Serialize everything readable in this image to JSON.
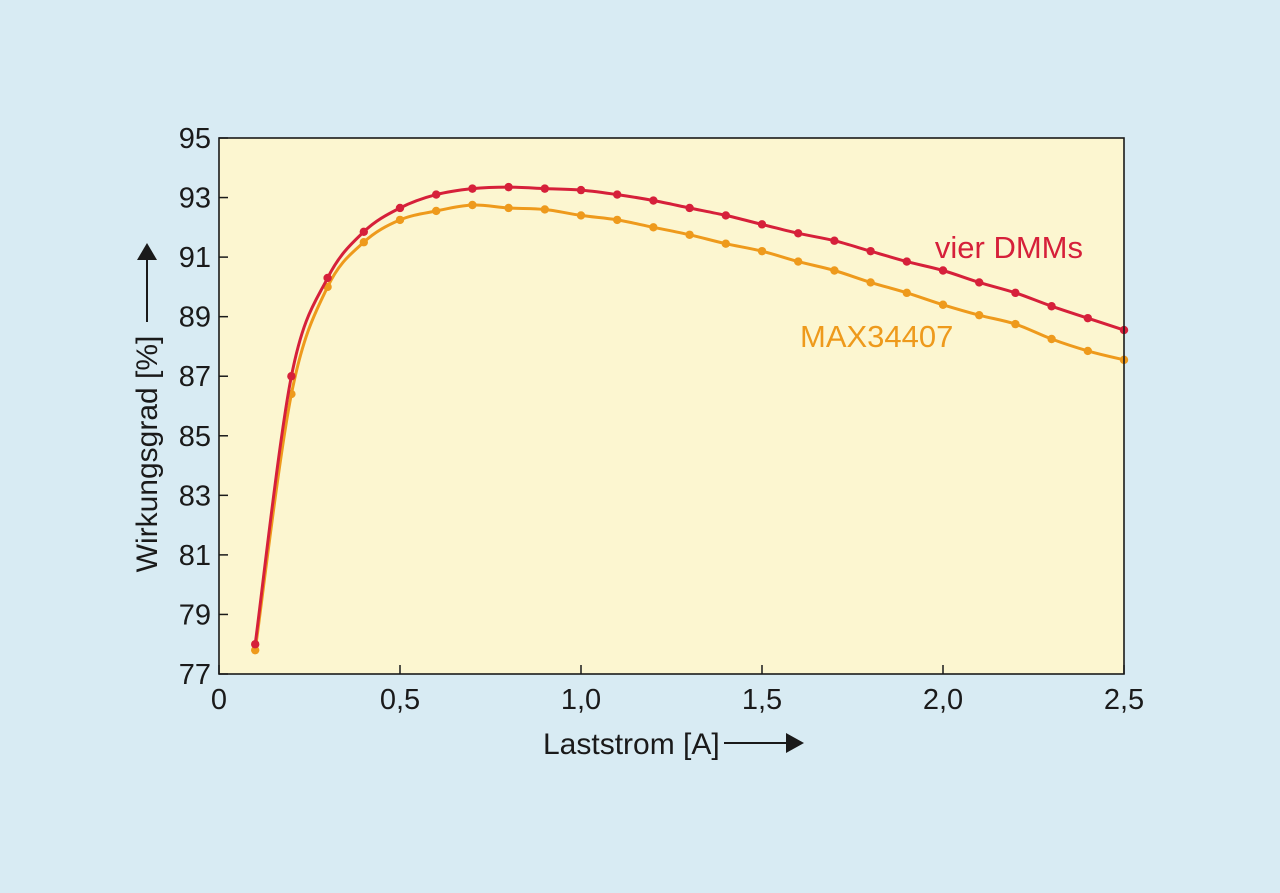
{
  "colors": {
    "background": "#d8ebf3",
    "plot_area": "#fcf6d0",
    "frame": "#1a1a1a",
    "arrow": "#1a1a1a"
  },
  "chart_data": {
    "type": "line",
    "title": "",
    "xlabel": "Laststrom [A]",
    "ylabel": "Wirkungsgrad [%]",
    "xlim": [
      0,
      2.5
    ],
    "ylim": [
      77,
      95
    ],
    "grid": false,
    "legend": "inline labels",
    "x_ticks": [
      0,
      0.5,
      1.0,
      1.5,
      2.0,
      2.5
    ],
    "x_tick_labels": [
      "0",
      "0,5",
      "1,0",
      "1,5",
      "2,0",
      "2,5"
    ],
    "y_ticks": [
      77,
      79,
      81,
      83,
      85,
      87,
      89,
      91,
      93,
      95
    ],
    "y_tick_labels": [
      "77",
      "79",
      "81",
      "83",
      "85",
      "87",
      "89",
      "91",
      "93",
      "95"
    ],
    "x": [
      0.1,
      0.2,
      0.3,
      0.4,
      0.5,
      0.6,
      0.7,
      0.8,
      0.9,
      1.0,
      1.1,
      1.2,
      1.3,
      1.4,
      1.5,
      1.6,
      1.7,
      1.8,
      1.9,
      2.0,
      2.1,
      2.2,
      2.3,
      2.4,
      2.5
    ],
    "series": [
      {
        "name": "vier DMMs",
        "color": "#d6203a",
        "values": [
          78.0,
          87.0,
          90.3,
          91.85,
          92.65,
          93.1,
          93.3,
          93.35,
          93.3,
          93.25,
          93.1,
          92.9,
          92.65,
          92.4,
          92.1,
          91.8,
          91.55,
          91.2,
          90.85,
          90.55,
          90.15,
          89.8,
          89.35,
          88.95,
          88.55
        ]
      },
      {
        "name": "MAX34407",
        "color": "#ee9a1c",
        "values": [
          77.8,
          86.4,
          90.0,
          91.5,
          92.25,
          92.55,
          92.75,
          92.65,
          92.6,
          92.4,
          92.25,
          92.0,
          91.75,
          91.45,
          91.2,
          90.85,
          90.55,
          90.15,
          89.8,
          89.4,
          89.05,
          88.75,
          88.25,
          87.85,
          87.55
        ]
      }
    ]
  }
}
